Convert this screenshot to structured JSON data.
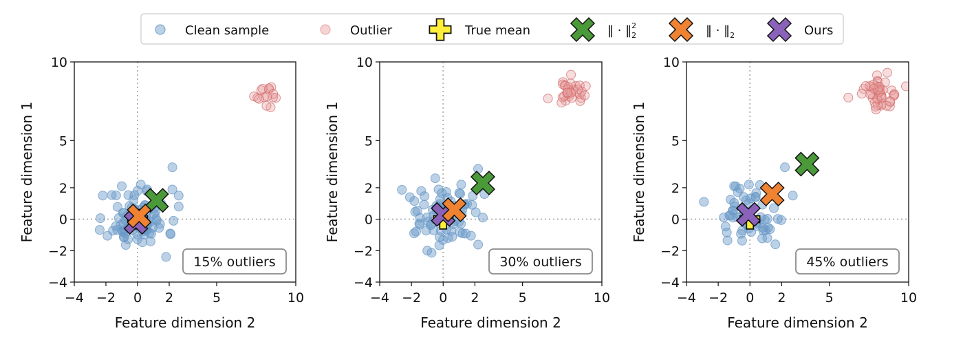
{
  "legend": {
    "placement": "top-center",
    "items": [
      {
        "label": "Clean sample",
        "marker": "circle",
        "color": "#6a9ac7"
      },
      {
        "label": "Outlier",
        "marker": "circle",
        "color": "#e89f9f"
      },
      {
        "label": "True mean",
        "marker": "plus",
        "color": "#ffef3a"
      },
      {
        "label": "‖ · ‖",
        "sub": "2",
        "sup": "2",
        "marker": "x",
        "color": "#4b9a3a"
      },
      {
        "label": "‖ · ‖",
        "sub": "2",
        "sup": "",
        "marker": "x",
        "color": "#ef8332"
      },
      {
        "label": "Ours",
        "marker": "x",
        "color": "#8b62b9"
      }
    ]
  },
  "chart_data": [
    {
      "type": "scatter",
      "annotation": "15% outliers",
      "xlabel": "Feature dimension 2",
      "ylabel": "Feature dimension 1",
      "xlim": [
        -4,
        10
      ],
      "ylim": [
        -4,
        10
      ],
      "xticks": [
        -4,
        -2,
        0,
        2,
        5,
        10
      ],
      "yticks": [
        -4,
        -2,
        0,
        2,
        5,
        10
      ],
      "grid": false,
      "reference_lines": {
        "x": 0,
        "y": 0
      },
      "clean": {
        "n": 85,
        "seed": 11,
        "spread": 0.95,
        "extra": [
          [
            2.2,
            3.3
          ],
          [
            2.6,
            1.5
          ],
          [
            2.6,
            0.8
          ],
          [
            1.8,
            -2.4
          ],
          [
            -2.2,
            1.5
          ],
          [
            -1.0,
            2.1
          ],
          [
            0.0,
            1.8
          ]
        ]
      },
      "outliers": {
        "center": [
          8.1,
          7.8
        ],
        "n": 15,
        "seed": 21,
        "spread": 0.45
      },
      "markers": {
        "true_mean": [
          0.0,
          0.0
        ],
        "l2_squared": [
          1.2,
          1.2
        ],
        "l2": [
          0.1,
          0.2
        ],
        "ours": [
          -0.1,
          -0.2
        ]
      }
    },
    {
      "type": "scatter",
      "annotation": "30% outliers",
      "xlabel": "Feature dimension 2",
      "ylabel": "Feature dimension 1",
      "xlim": [
        -4,
        10
      ],
      "ylim": [
        -4,
        10
      ],
      "xticks": [
        -4,
        -2,
        0,
        2,
        5,
        10
      ],
      "yticks": [
        -4,
        -2,
        0,
        2,
        5,
        10
      ],
      "grid": false,
      "reference_lines": {
        "x": 0,
        "y": 0
      },
      "clean": {
        "n": 70,
        "seed": 33,
        "spread": 0.95,
        "extra": [
          [
            2.2,
            3.2
          ],
          [
            2.6,
            1.6
          ],
          [
            2.5,
            0.1
          ],
          [
            -2.1,
            1.4
          ],
          [
            -0.5,
            2.6
          ],
          [
            -1.0,
            -2.0
          ]
        ]
      },
      "outliers": {
        "center": [
          8.0,
          8.0
        ],
        "n": 30,
        "seed": 44,
        "spread": 0.55
      },
      "markers": {
        "true_mean": [
          0.0,
          0.0
        ],
        "l2_squared": [
          2.5,
          2.3
        ],
        "l2": [
          0.7,
          0.6
        ],
        "ours": [
          0.0,
          0.3
        ]
      }
    },
    {
      "type": "scatter",
      "annotation": "45% outliers",
      "xlabel": "Feature dimension 2",
      "ylabel": "Feature dimension 1",
      "xlim": [
        -4,
        10
      ],
      "ylim": [
        -4,
        10
      ],
      "xticks": [
        -4,
        -2,
        0,
        2,
        5,
        10
      ],
      "yticks": [
        -4,
        -2,
        0,
        2,
        5,
        10
      ],
      "grid": false,
      "reference_lines": {
        "x": 0,
        "y": 0
      },
      "clean": {
        "n": 55,
        "seed": 55,
        "spread": 0.95,
        "extra": [
          [
            2.2,
            3.3
          ],
          [
            2.7,
            1.5
          ],
          [
            -2.9,
            1.1
          ],
          [
            -1.0,
            2.1
          ],
          [
            1.6,
            -1.6
          ]
        ]
      },
      "outliers": {
        "center": [
          8.1,
          7.9
        ],
        "n": 45,
        "seed": 66,
        "spread": 0.6
      },
      "markers": {
        "true_mean": [
          0.0,
          0.0
        ],
        "l2_squared": [
          3.6,
          3.5
        ],
        "l2": [
          1.4,
          1.6
        ],
        "ours": [
          -0.1,
          0.3
        ]
      }
    }
  ]
}
